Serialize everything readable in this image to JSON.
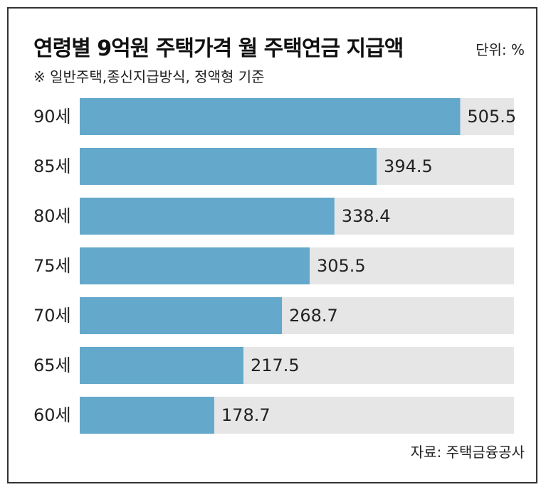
{
  "title": "연령별 9억원 주택가격 월 주택연금 지급액",
  "unit_label": "단위: %",
  "note": "※ 일반주택,종신지급방식, 정액형 기준",
  "source": "자료: 주택금융공사",
  "colors": {
    "bar": "#64a8cb",
    "track": "#e6e6e6",
    "text": "#222222"
  },
  "chart_data": {
    "type": "bar",
    "orientation": "horizontal",
    "categories": [
      "90세",
      "85세",
      "80세",
      "75세",
      "70세",
      "65세",
      "60세"
    ],
    "values": [
      505.5,
      394.5,
      338.4,
      305.5,
      268.7,
      217.5,
      178.7
    ],
    "xlim": [
      0,
      577
    ],
    "grid": false,
    "legend": "none"
  }
}
